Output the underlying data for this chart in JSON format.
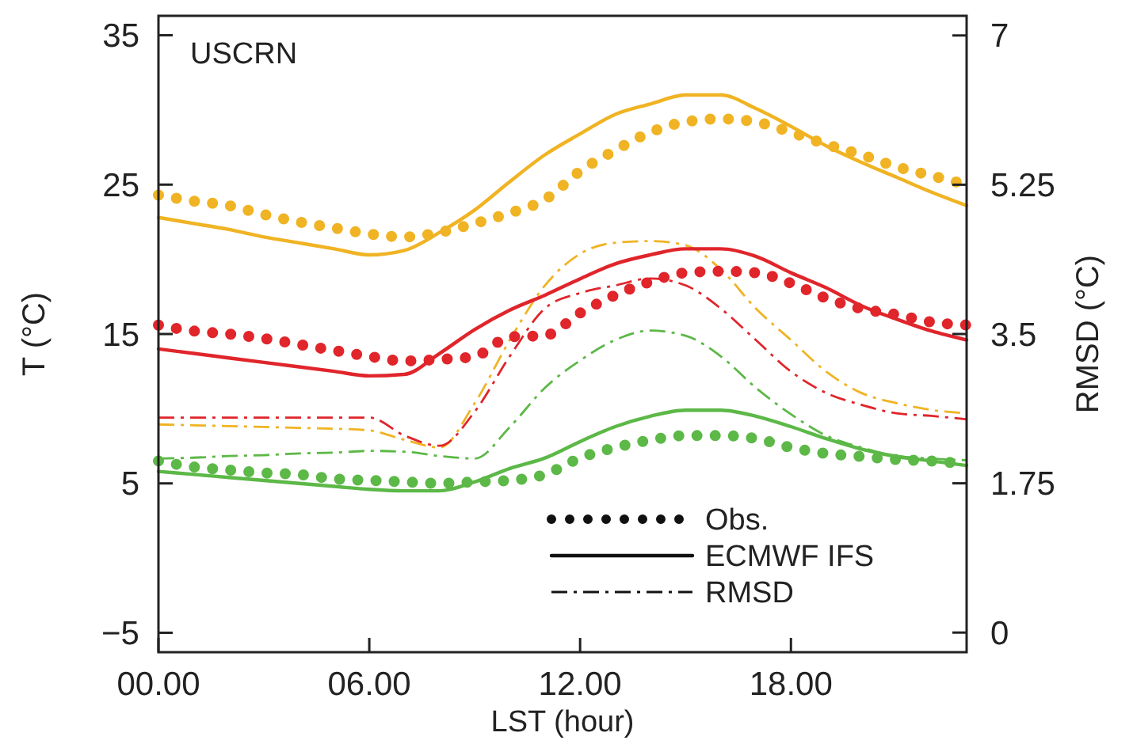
{
  "chart_data": {
    "type": "line",
    "title": "USCRN",
    "xlabel": "LST (hour)",
    "ylabel": "T (°C)",
    "y2label": "RMSD (°C)",
    "x": [
      0,
      1,
      2,
      3,
      4,
      5,
      6,
      7,
      8,
      9,
      10,
      11,
      12,
      13,
      14,
      15,
      16,
      17,
      18,
      19,
      20,
      21,
      22,
      23
    ],
    "xlim": [
      0,
      23
    ],
    "xticks": [
      {
        "value": 0,
        "label": "00.00"
      },
      {
        "value": 6,
        "label": "06.00"
      },
      {
        "value": 12,
        "label": "12.00"
      },
      {
        "value": 18,
        "label": "18.00"
      }
    ],
    "ylim": [
      -6.3,
      36.3
    ],
    "yticks": [
      {
        "value": -5,
        "label": "−5"
      },
      5,
      15,
      25,
      35
    ],
    "y2lim": [
      -0.23,
      7.23
    ],
    "y2ticks": [
      0,
      1.75,
      3.5,
      5.25,
      7
    ],
    "grid": false,
    "annotations": [
      "Obs.",
      "ECMWF IFS",
      "RMSD"
    ],
    "series": [
      {
        "color": "#f0b323",
        "line_style": "dotted",
        "values": [
          24.3,
          23.9,
          23.6,
          23.0,
          22.5,
          22.1,
          21.7,
          21.5,
          21.8,
          22.4,
          23.1,
          24.0,
          25.9,
          27.3,
          28.5,
          29.2,
          29.4,
          29.2,
          28.5,
          27.7,
          27.0,
          26.2,
          25.6,
          25.0
        ]
      },
      {
        "color": "#f0b323",
        "line_style": "solid",
        "values": [
          22.8,
          22.4,
          22.0,
          21.5,
          21.1,
          20.7,
          20.3,
          20.6,
          21.8,
          23.3,
          25.2,
          27.0,
          28.4,
          29.7,
          30.4,
          31.0,
          31.0,
          30.1,
          28.9,
          27.6,
          26.5,
          25.5,
          24.5,
          23.6
        ]
      },
      {
        "color": "#f0b323",
        "line_style": "dashed",
        "axis": "y2",
        "values": [
          2.44,
          2.43,
          2.42,
          2.41,
          2.4,
          2.39,
          2.37,
          2.26,
          2.17,
          2.69,
          3.43,
          4.07,
          4.44,
          4.57,
          4.59,
          4.54,
          4.26,
          3.8,
          3.43,
          3.06,
          2.81,
          2.69,
          2.61,
          2.57
        ]
      },
      {
        "color": "#e0252b",
        "line_style": "dotted",
        "values": [
          15.6,
          15.2,
          15.0,
          14.7,
          14.3,
          13.9,
          13.5,
          13.2,
          13.3,
          13.5,
          14.8,
          14.9,
          16.4,
          17.6,
          18.5,
          19.1,
          19.2,
          19.1,
          18.4,
          17.4,
          16.7,
          16.3,
          15.8,
          15.6
        ]
      },
      {
        "color": "#e0252b",
        "line_style": "solid",
        "values": [
          14.0,
          13.7,
          13.4,
          13.1,
          12.8,
          12.5,
          12.2,
          12.3,
          13.7,
          15.3,
          16.6,
          17.6,
          18.7,
          19.7,
          20.3,
          20.7,
          20.7,
          20.2,
          19.1,
          18.1,
          16.9,
          16.0,
          15.2,
          14.6
        ]
      },
      {
        "color": "#e0252b",
        "line_style": "dashed",
        "axis": "y2",
        "values": [
          2.52,
          2.52,
          2.52,
          2.52,
          2.52,
          2.52,
          2.52,
          2.31,
          2.19,
          2.59,
          3.24,
          3.8,
          3.98,
          4.07,
          4.15,
          4.07,
          3.8,
          3.43,
          3.06,
          2.81,
          2.67,
          2.57,
          2.54,
          2.5
        ]
      },
      {
        "color": "#5cb847",
        "line_style": "dotted",
        "values": [
          6.5,
          6.1,
          5.9,
          5.7,
          5.6,
          5.3,
          5.2,
          5.1,
          5.0,
          5.1,
          5.2,
          5.6,
          6.7,
          7.4,
          7.9,
          8.2,
          8.2,
          8.0,
          7.4,
          7.0,
          6.8,
          6.6,
          6.5,
          6.3
        ]
      },
      {
        "color": "#5cb847",
        "line_style": "solid",
        "values": [
          5.8,
          5.6,
          5.4,
          5.2,
          5.0,
          4.8,
          4.6,
          4.5,
          4.5,
          5.1,
          6.0,
          6.7,
          7.8,
          8.8,
          9.5,
          9.9,
          9.9,
          9.5,
          8.8,
          8.0,
          7.3,
          6.8,
          6.5,
          6.2
        ]
      },
      {
        "color": "#5cb847",
        "line_style": "dashed",
        "axis": "y2",
        "values": [
          2.04,
          2.05,
          2.07,
          2.08,
          2.1,
          2.11,
          2.13,
          2.12,
          2.07,
          2.04,
          2.41,
          2.87,
          3.19,
          3.43,
          3.54,
          3.48,
          3.24,
          2.87,
          2.56,
          2.31,
          2.17,
          2.07,
          2.04,
          2.02
        ]
      }
    ]
  }
}
